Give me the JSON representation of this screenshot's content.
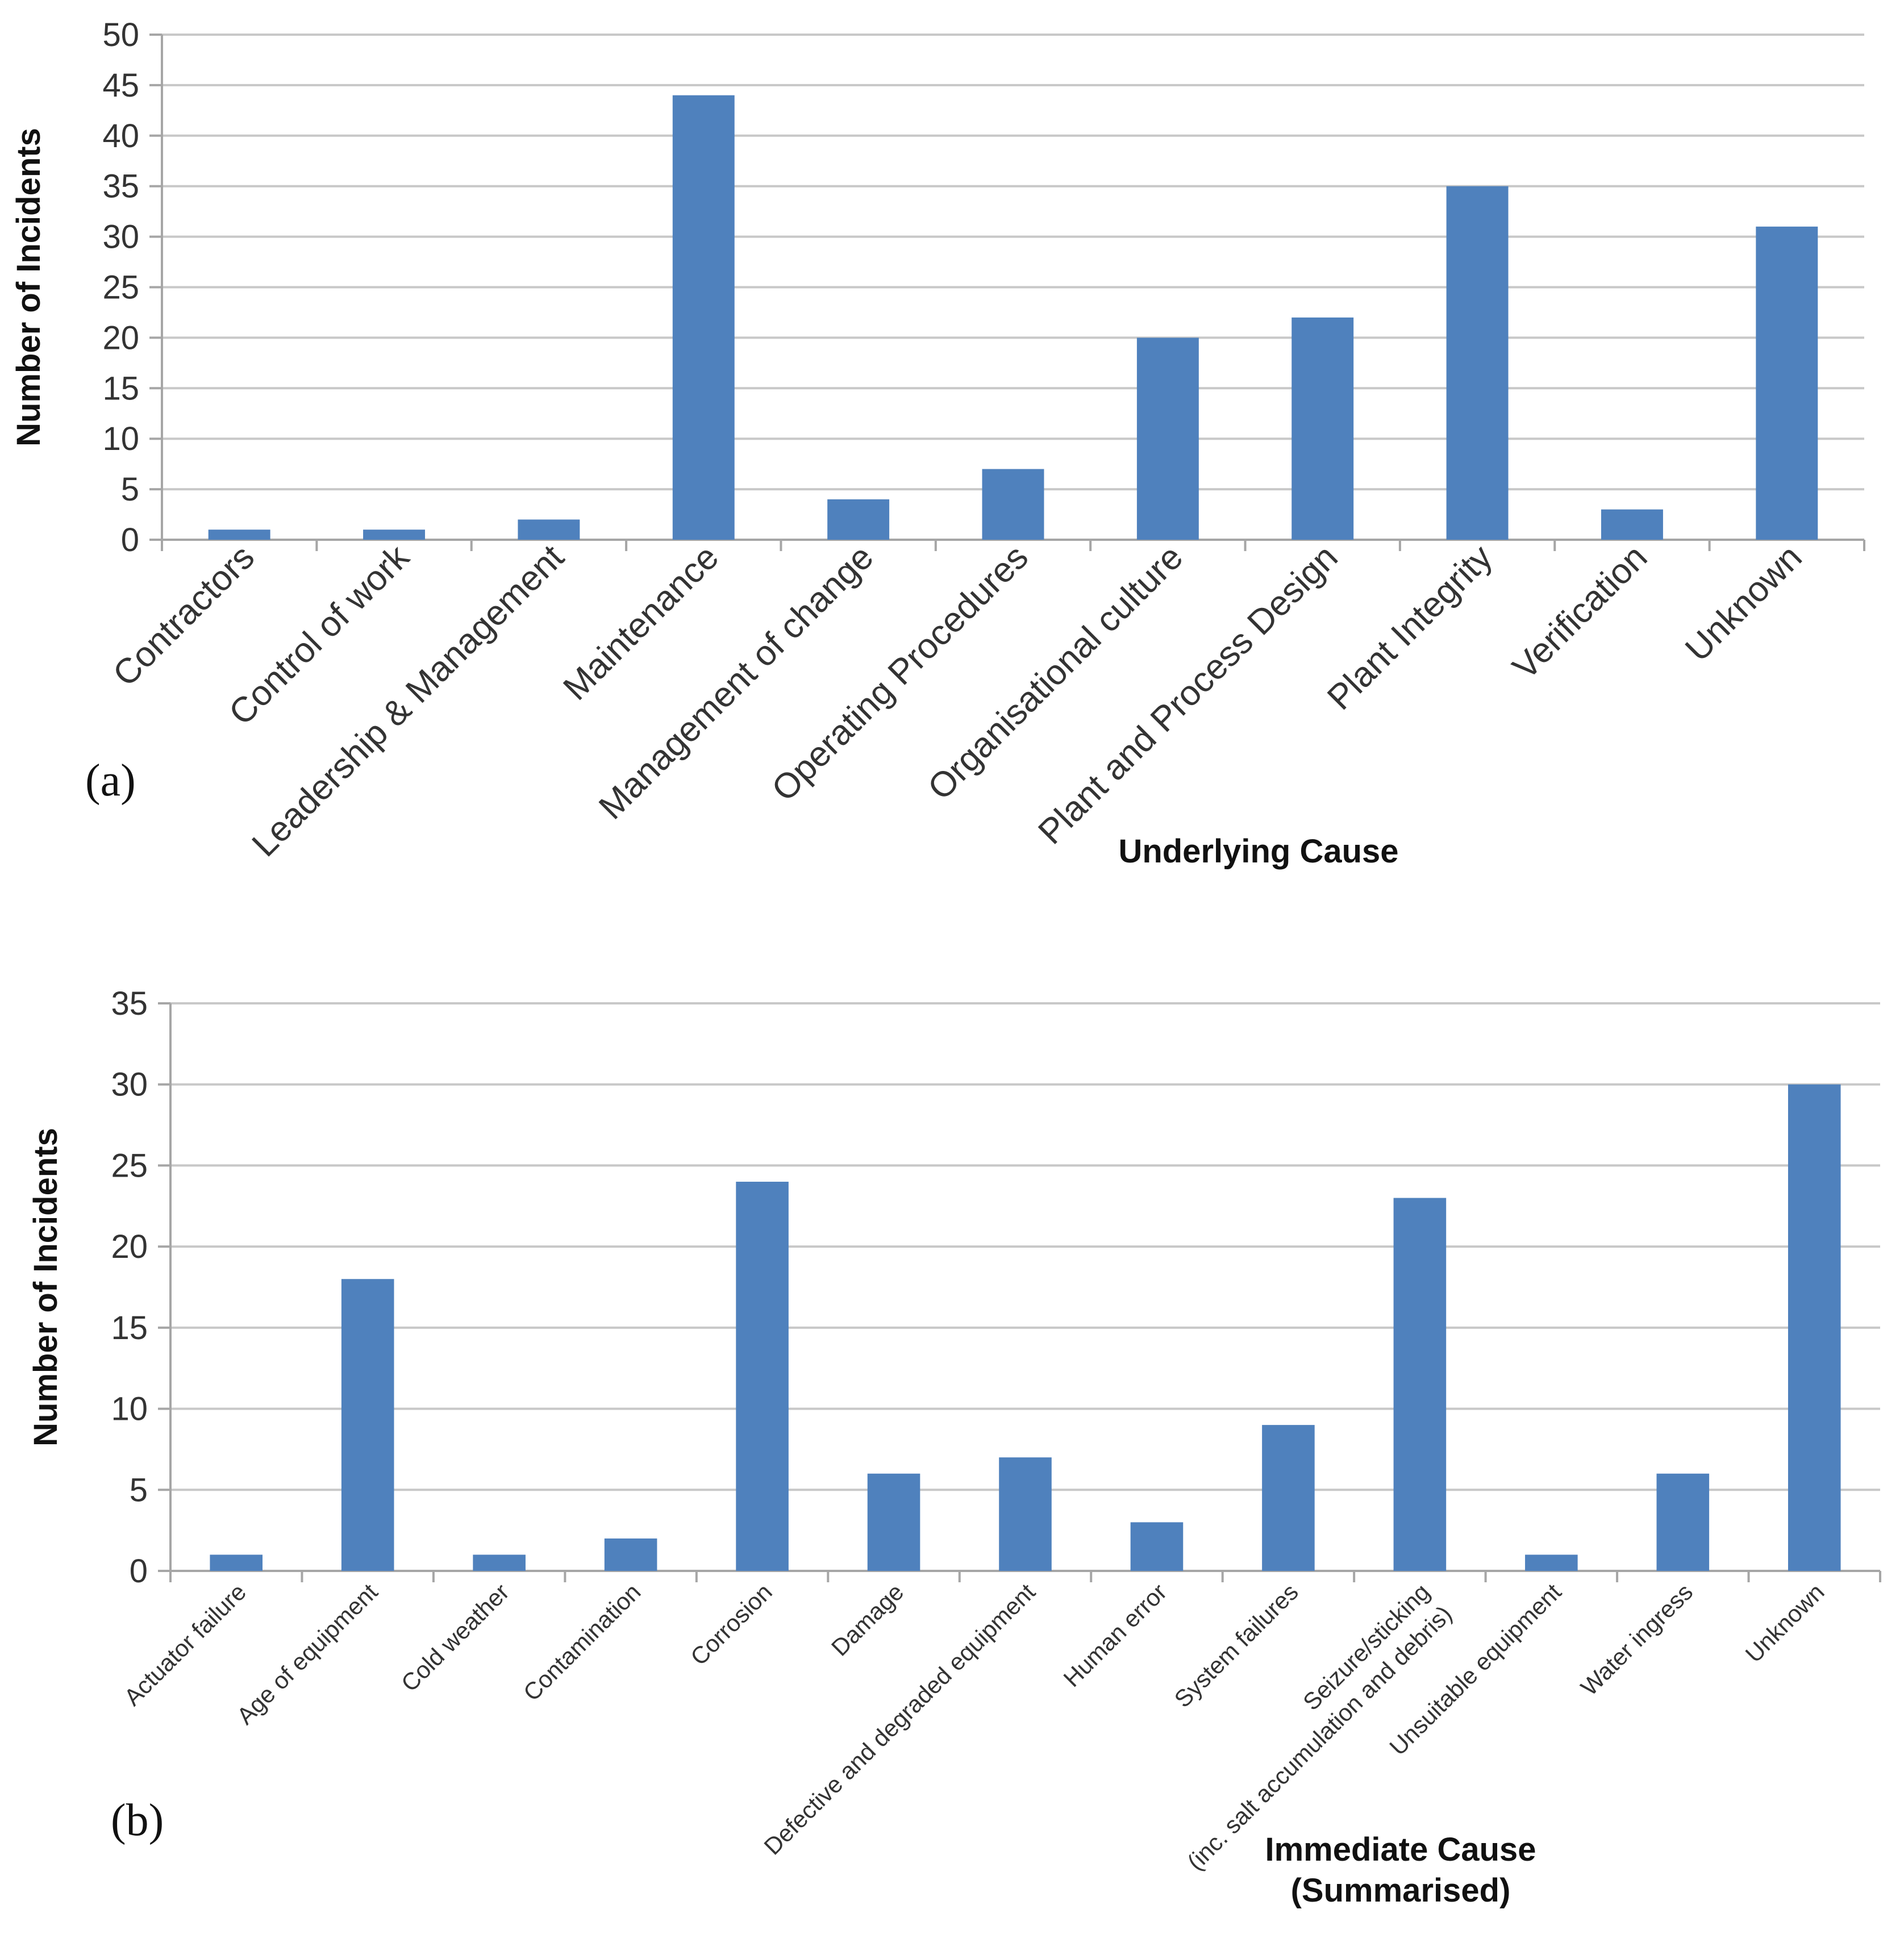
{
  "chart_data": [
    {
      "type": "bar",
      "panel_label": "(a)",
      "ylabel": "Number of Incidents",
      "xlabel": "Underlying Cause",
      "ylim": [
        0,
        50
      ],
      "yticks": [
        0,
        5,
        10,
        15,
        20,
        25,
        30,
        35,
        40,
        45,
        50
      ],
      "categories": [
        "Contractors",
        "Control of work",
        "Leadership & Management",
        "Maintenance",
        "Management of change",
        "Operating Procedures",
        "Organisational culture",
        "Plant and Process Design",
        "Plant Integrity",
        "Verification",
        "Unknown"
      ],
      "values": [
        1,
        1,
        2,
        44,
        4,
        7,
        20,
        22,
        35,
        3,
        31
      ],
      "color": "#4f81bd",
      "grid": true
    },
    {
      "type": "bar",
      "panel_label": "(b)",
      "ylabel": "Number of Incidents",
      "xlabel_lines": [
        "Immediate Cause",
        "(Summarised)"
      ],
      "ylim": [
        0,
        35
      ],
      "yticks": [
        0,
        5,
        10,
        15,
        20,
        25,
        30,
        35
      ],
      "categories": [
        "Actuator failure",
        "Age of equipment",
        "Cold weather",
        "Contamination",
        "Corrosion",
        "Damage",
        "Defective and degraded equipment",
        "Human error",
        "System failures",
        "Seizure/sticking (inc. salt accumulation and debris)",
        "Unsuitable equipment",
        "Water ingress",
        "Unknown"
      ],
      "category_label_lines": [
        [
          "Actuator failure"
        ],
        [
          "Age of equipment"
        ],
        [
          "Cold weather"
        ],
        [
          "Contamination"
        ],
        [
          "Corrosion"
        ],
        [
          "Damage"
        ],
        [
          "Defective and degraded equipment"
        ],
        [
          "Human error"
        ],
        [
          "System failures"
        ],
        [
          "Seizure/sticking",
          "(inc. salt accumulation and debris)"
        ],
        [
          "Unsuitable equipment"
        ],
        [
          "Water ingress"
        ],
        [
          "Unknown"
        ]
      ],
      "values": [
        1,
        18,
        1,
        2,
        24,
        6,
        7,
        3,
        9,
        23,
        1,
        6,
        30
      ],
      "color": "#4f81bd",
      "grid": true
    }
  ]
}
